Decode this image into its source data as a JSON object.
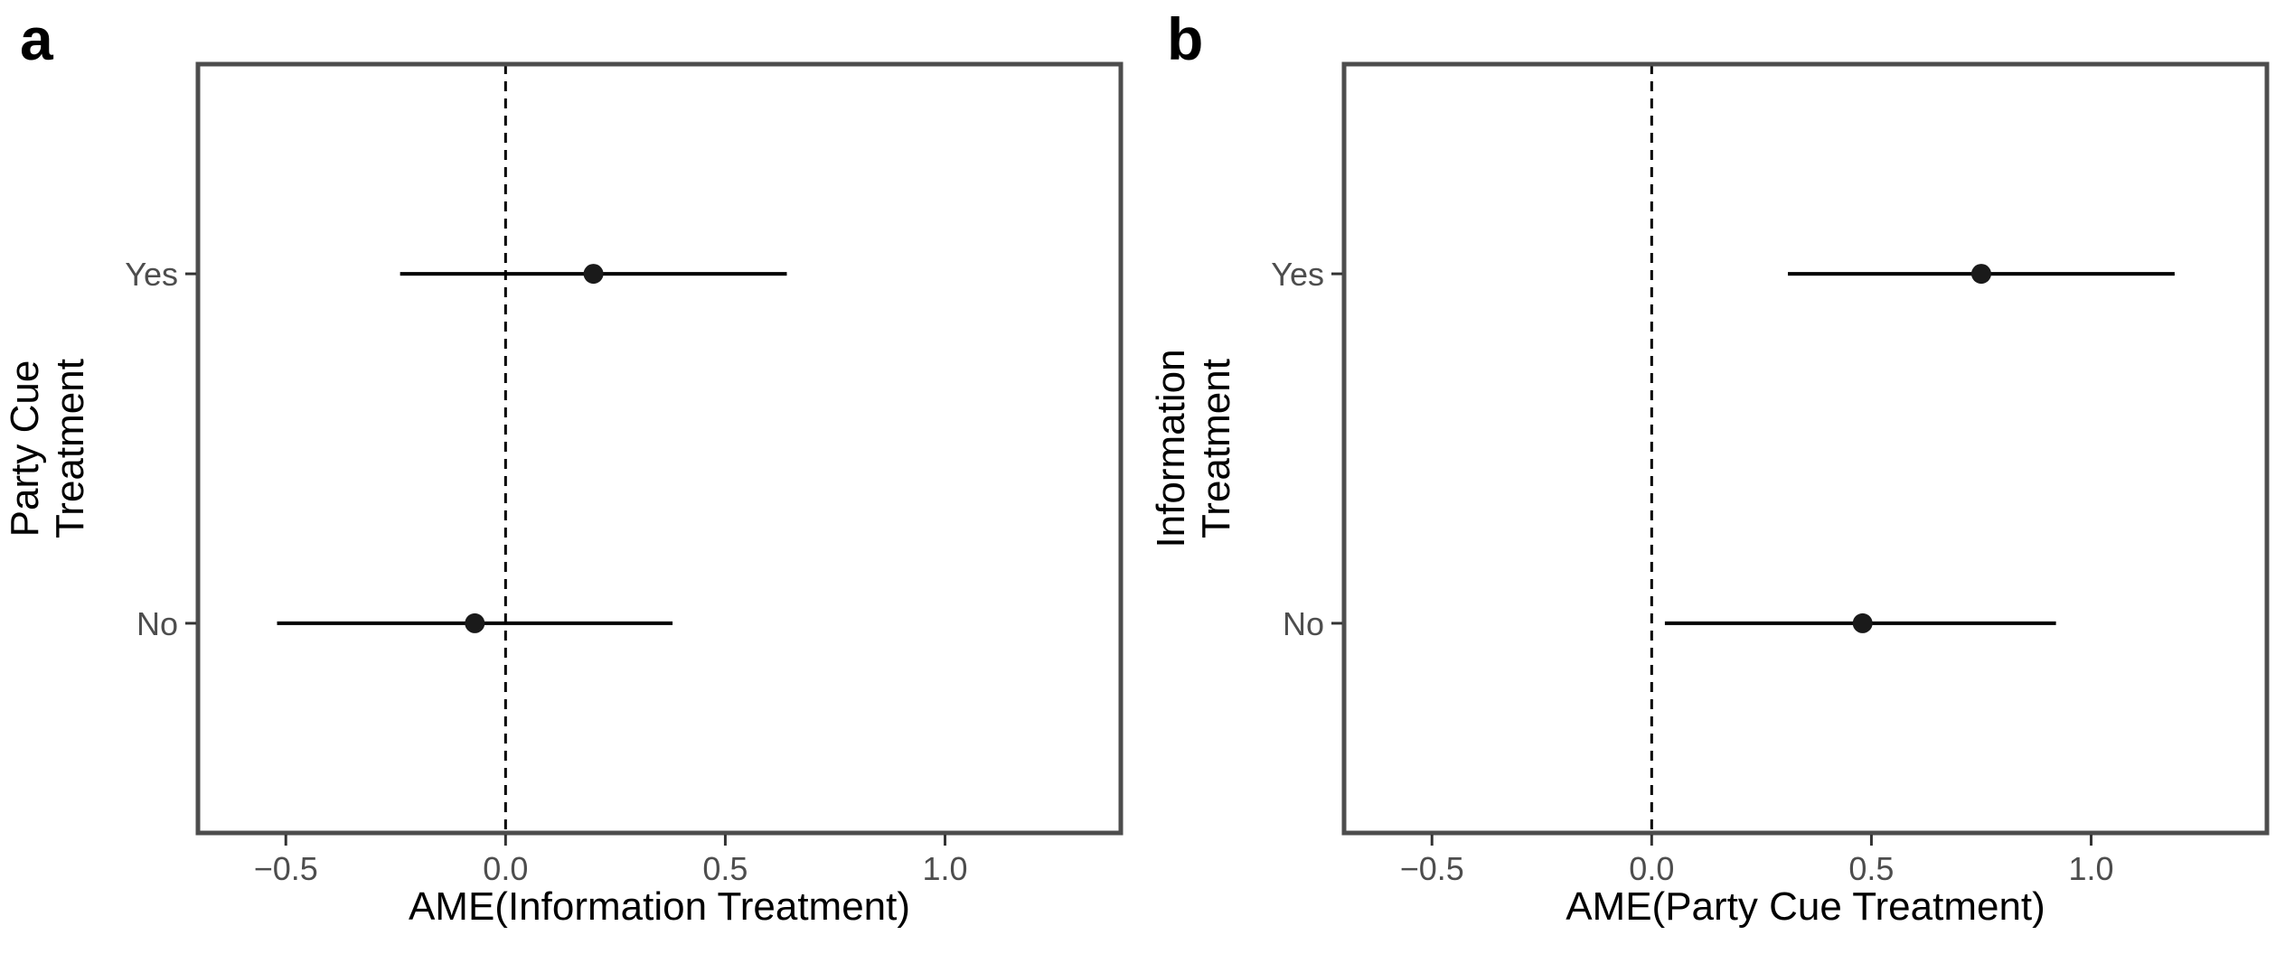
{
  "chart_data": [
    {
      "type": "scatter",
      "panel_label": "a",
      "xlabel": "AME(Information Treatment)",
      "ylabel": [
        "Party Cue",
        "Treatment"
      ],
      "xlim": [
        -0.7,
        1.4
      ],
      "x_ticks": [
        -0.5,
        0.0,
        0.5,
        1.0
      ],
      "x_tick_labels": [
        "−0.5",
        "0.0",
        "0.5",
        "1.0"
      ],
      "categories": [
        "No",
        "Yes"
      ],
      "points": [
        {
          "category": "Yes",
          "estimate": 0.2,
          "ci_low": -0.24,
          "ci_high": 0.64
        },
        {
          "category": "No",
          "estimate": -0.07,
          "ci_low": -0.52,
          "ci_high": 0.38
        }
      ],
      "reference_line_x": 0,
      "grid": false,
      "legend": "none"
    },
    {
      "type": "scatter",
      "panel_label": "b",
      "xlabel": "AME(Party Cue Treatment)",
      "ylabel": [
        "Information",
        "Treatment"
      ],
      "xlim": [
        -0.7,
        1.4
      ],
      "x_ticks": [
        -0.5,
        0.0,
        0.5,
        1.0
      ],
      "x_tick_labels": [
        "−0.5",
        "0.0",
        "0.5",
        "1.0"
      ],
      "categories": [
        "No",
        "Yes"
      ],
      "points": [
        {
          "category": "Yes",
          "estimate": 0.75,
          "ci_low": 0.31,
          "ci_high": 1.19
        },
        {
          "category": "No",
          "estimate": 0.48,
          "ci_low": 0.03,
          "ci_high": 0.92
        }
      ],
      "reference_line_x": 0,
      "grid": false,
      "legend": "none"
    }
  ]
}
